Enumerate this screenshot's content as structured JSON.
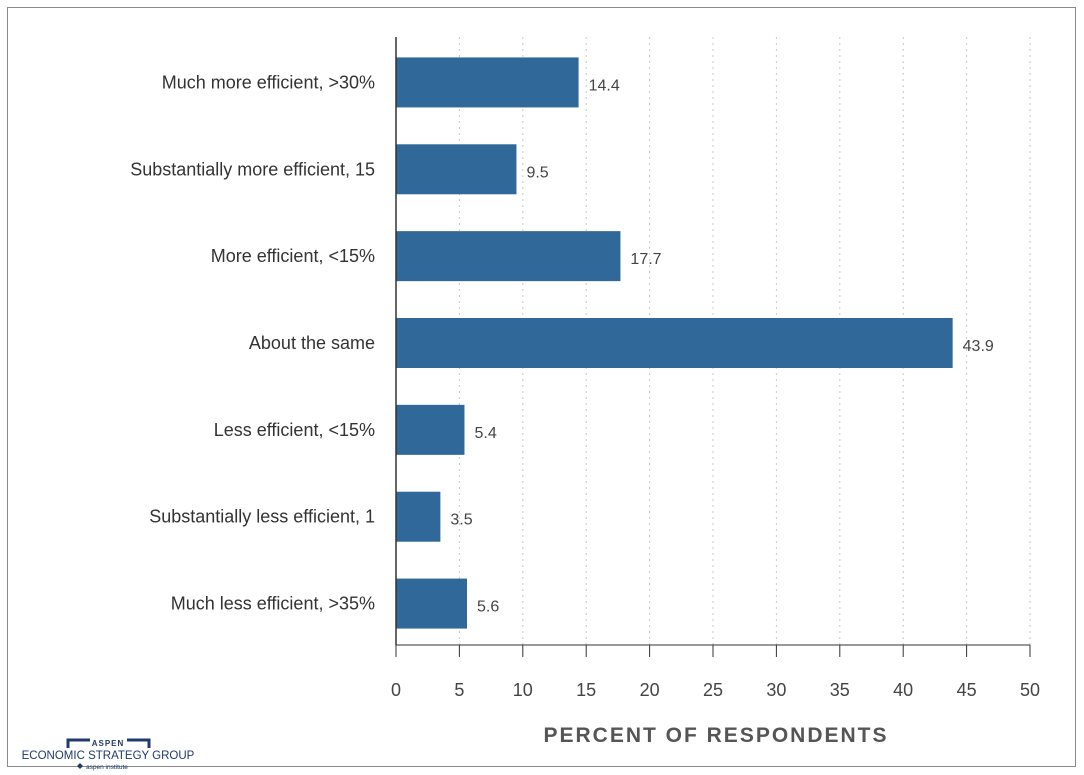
{
  "chart_data": {
    "type": "bar",
    "orientation": "horizontal",
    "categories": [
      "Much more efficient, >30%",
      "Substantially more efficient, 15",
      "More efficient, <15%",
      "About the same",
      "Less efficient, <15%",
      "Substantially less efficient, 1",
      "Much less efficient, >35%"
    ],
    "values": [
      14.4,
      9.5,
      17.7,
      43.9,
      5.4,
      3.5,
      5.6
    ],
    "value_labels": [
      "14.4",
      "9.5",
      "17.7",
      "43.9",
      "5.4",
      "3.5",
      "5.6"
    ],
    "xlabel": "PERCENT OF RESPONDENTS",
    "xlim": [
      0,
      50
    ],
    "xticks": [
      "0",
      "5",
      "10",
      "15",
      "20",
      "25",
      "30",
      "35",
      "40",
      "45",
      "50"
    ],
    "grid": "vertical dotted",
    "bar_color": "#31689a",
    "legend": "none"
  },
  "logo": {
    "top": "ASPEN",
    "middle": "ECONOMIC STRATEGY GROUP",
    "bottom": "aspen institute",
    "color": "#1f3a6b"
  }
}
